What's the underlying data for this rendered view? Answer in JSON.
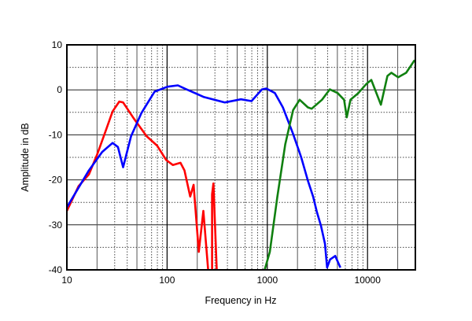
{
  "chart_data": {
    "type": "line",
    "title": "",
    "xlabel": "Frequency in Hz",
    "ylabel": "Amplitude in dB",
    "xscale": "log",
    "xlim": [
      10,
      30000
    ],
    "ylim": [
      -40,
      10
    ],
    "grid": true,
    "x_ticks": [
      "10",
      "100",
      "1000",
      "10000"
    ],
    "x_tick_values": [
      10,
      100,
      1000,
      10000
    ],
    "y_ticks": [
      "10",
      "0",
      "-10",
      "-20",
      "-30",
      "-40"
    ],
    "y_tick_values": [
      10,
      0,
      -10,
      -20,
      -30,
      -40
    ],
    "series": [
      {
        "color": "#ff0000",
        "points": [
          [
            10,
            -26.9
          ],
          [
            13.1,
            -21.4
          ],
          [
            16.6,
            -18.8
          ],
          [
            20,
            -14.4
          ],
          [
            24.6,
            -8.9
          ],
          [
            28.6,
            -4.8
          ],
          [
            33.3,
            -2.6
          ],
          [
            36.4,
            -2.8
          ],
          [
            46.3,
            -6.3
          ],
          [
            62.5,
            -10.3
          ],
          [
            79.5,
            -12.4
          ],
          [
            98,
            -15.6
          ],
          [
            114,
            -16.7
          ],
          [
            136,
            -16.2
          ],
          [
            149,
            -17.9
          ],
          [
            170,
            -23.7
          ],
          [
            184,
            -21.1
          ],
          [
            207,
            -36
          ],
          [
            230,
            -26.9
          ],
          [
            257,
            -40
          ]
        ]
      },
      {
        "color": "#ff0000",
        "points": [
          [
            281,
            -40
          ],
          [
            281,
            -23.2
          ],
          [
            290,
            -20.8
          ],
          [
            313,
            -40
          ]
        ]
      },
      {
        "color": "#0000ff",
        "points": [
          [
            10,
            -26.1
          ],
          [
            16.6,
            -17.9
          ],
          [
            22.5,
            -13.8
          ],
          [
            28.6,
            -11.8
          ],
          [
            32.3,
            -12.7
          ],
          [
            36.4,
            -17.2
          ],
          [
            43.7,
            -10.3
          ],
          [
            55.6,
            -5.1
          ],
          [
            75,
            -0.4
          ],
          [
            101,
            0.7
          ],
          [
            128,
            1.0
          ],
          [
            153,
            0.2
          ],
          [
            234,
            -1.6
          ],
          [
            377,
            -2.8
          ],
          [
            546,
            -2.1
          ],
          [
            695,
            -2.5
          ],
          [
            885,
            0.1
          ],
          [
            977,
            0.3
          ],
          [
            1190,
            -0.7
          ],
          [
            1430,
            -3.9
          ],
          [
            1810,
            -9.8
          ],
          [
            2180,
            -15
          ],
          [
            2540,
            -20.2
          ],
          [
            2860,
            -23.7
          ],
          [
            3130,
            -27.2
          ],
          [
            3430,
            -30.2
          ],
          [
            3760,
            -34.2
          ],
          [
            3950,
            -39.5
          ],
          [
            4230,
            -37.7
          ],
          [
            4760,
            -36.9
          ],
          [
            5360,
            -39.5
          ]
        ]
      },
      {
        "color": "#108010",
        "points": [
          [
            940,
            -40
          ],
          [
            1060,
            -36
          ],
          [
            1260,
            -23.7
          ],
          [
            1510,
            -12.1
          ],
          [
            1810,
            -4.5
          ],
          [
            2100,
            -2.2
          ],
          [
            2540,
            -3.9
          ],
          [
            2770,
            -4.2
          ],
          [
            3510,
            -2.2
          ],
          [
            4200,
            0.1
          ],
          [
            5020,
            -0.7
          ],
          [
            5830,
            -2.2
          ],
          [
            6200,
            -6.1
          ],
          [
            6760,
            -2.2
          ],
          [
            8110,
            -0.7
          ],
          [
            9720,
            1.3
          ],
          [
            10900,
            2.2
          ],
          [
            13600,
            -3.3
          ],
          [
            15800,
            3.1
          ],
          [
            17300,
            3.8
          ],
          [
            20200,
            2.8
          ],
          [
            24300,
            3.8
          ],
          [
            29500,
            6.6
          ]
        ]
      }
    ]
  }
}
